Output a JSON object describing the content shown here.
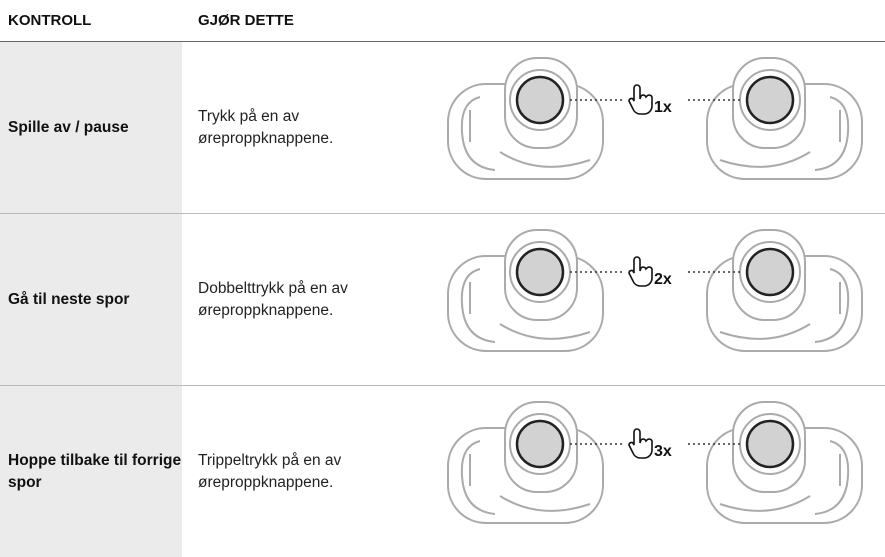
{
  "header": {
    "control": "KONTROLL",
    "action": "GJØR DETTE"
  },
  "rows": [
    {
      "control": "Spille av / pause",
      "action": "Trykk på en av øreproppknappene.",
      "taps": "1x"
    },
    {
      "control": "Gå til neste spor",
      "action": "Dobbelttrykk på en av øreproppknappene.",
      "taps": "2x"
    },
    {
      "control": "Hoppe tilbake til forrige spor",
      "action": "Trippeltrykk på en av øreproppknappene.",
      "taps": "3x"
    }
  ]
}
